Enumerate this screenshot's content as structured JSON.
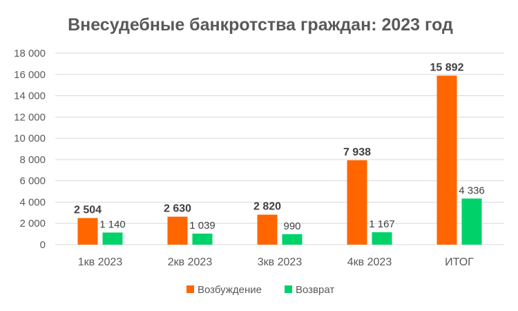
{
  "chart_data": {
    "type": "bar",
    "title": "Внесудебные банкротства граждан: 2023 год",
    "categories": [
      "1кв 2023",
      "2кв 2023",
      "3кв 2023",
      "4кв 2023",
      "ИТОГ"
    ],
    "series": [
      {
        "name": "Возбуждение",
        "color": "#ff6600",
        "values": [
          2504,
          2630,
          2820,
          7938,
          15892
        ],
        "labels": [
          "2 504",
          "2 630",
          "2 820",
          "7 938",
          "15 892"
        ]
      },
      {
        "name": "Возврат",
        "color": "#00d26a",
        "values": [
          1140,
          1039,
          990,
          1167,
          4336
        ],
        "labels": [
          "1 140",
          "1 039",
          "990",
          "1 167",
          "4 336"
        ]
      }
    ],
    "ylim": [
      0,
      18000
    ],
    "yticks": [
      0,
      2000,
      4000,
      6000,
      8000,
      10000,
      12000,
      14000,
      16000,
      18000
    ],
    "ytick_labels": [
      "0",
      "2 000",
      "4 000",
      "6 000",
      "8 000",
      "10 000",
      "12 000",
      "14 000",
      "16 000",
      "18 000"
    ],
    "grid": true,
    "legend": "bottom-center"
  }
}
